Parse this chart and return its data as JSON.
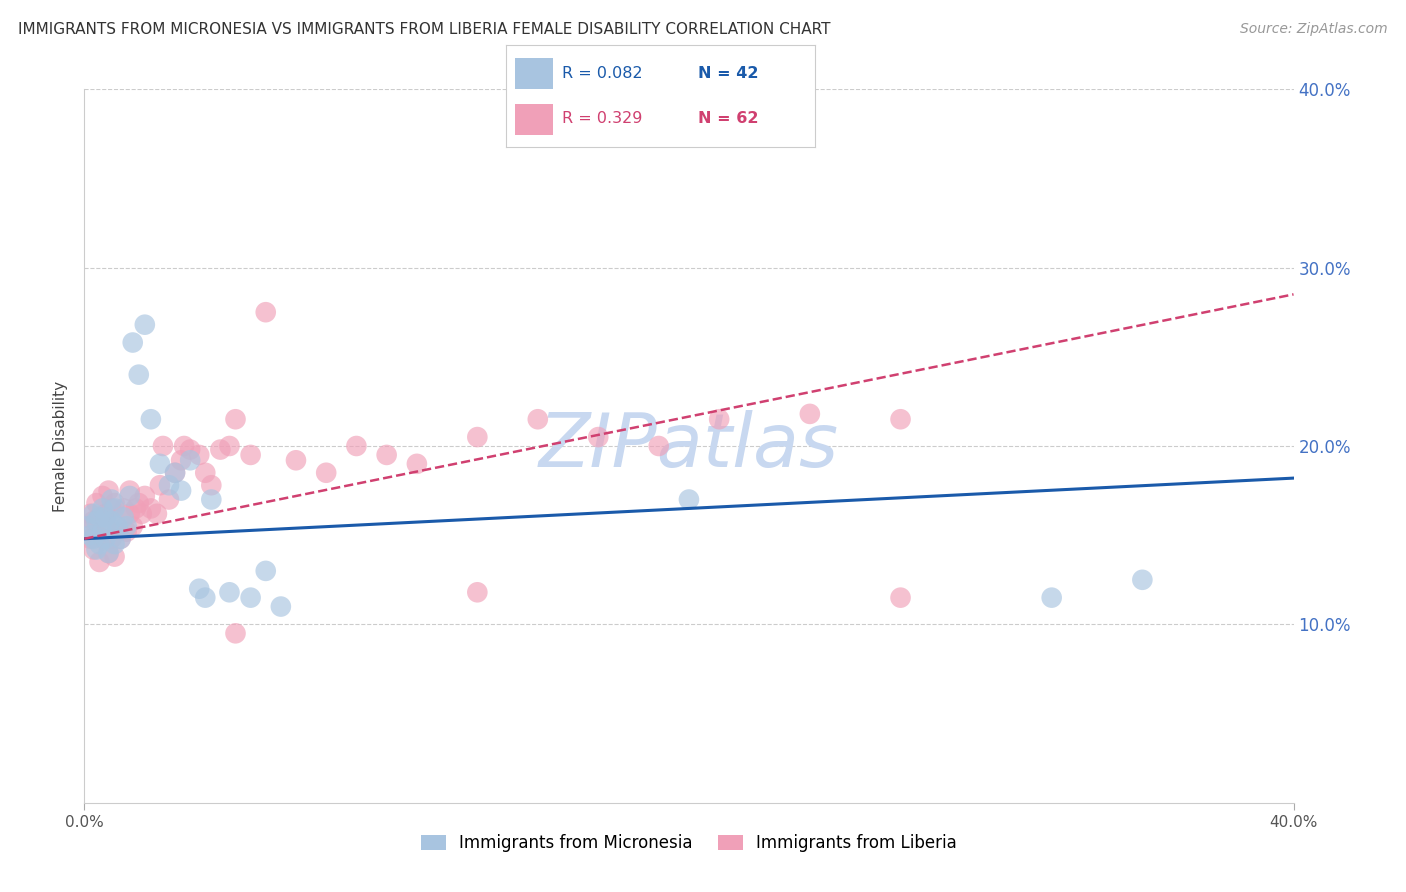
{
  "title": "IMMIGRANTS FROM MICRONESIA VS IMMIGRANTS FROM LIBERIA FEMALE DISABILITY CORRELATION CHART",
  "source": "Source: ZipAtlas.com",
  "ylabel": "Female Disability",
  "background_color": "#ffffff",
  "xlim": [
    0.0,
    0.4
  ],
  "ylim": [
    0.0,
    0.4
  ],
  "yticks": [
    0.1,
    0.2,
    0.3,
    0.4
  ],
  "xticks": [
    0.0,
    0.4
  ],
  "xtick_labels": [
    "0.0%",
    "40.0%"
  ],
  "ytick_labels": [
    "10.0%",
    "20.0%",
    "30.0%",
    "40.0%"
  ],
  "series1_label": "Immigrants from Micronesia",
  "series2_label": "Immigrants from Liberia",
  "series1_R": "0.082",
  "series1_N": "42",
  "series2_R": "0.329",
  "series2_N": "62",
  "series1_color": "#a8c4e0",
  "series2_color": "#f0a0b8",
  "trend1_color": "#1a5aaa",
  "trend2_color": "#d04070",
  "watermark": "ZIPatlas",
  "watermark_color": "#c8d8f0",
  "micronesia_x": [
    0.001,
    0.002,
    0.003,
    0.003,
    0.004,
    0.004,
    0.005,
    0.005,
    0.006,
    0.006,
    0.007,
    0.007,
    0.008,
    0.008,
    0.009,
    0.009,
    0.01,
    0.01,
    0.011,
    0.012,
    0.013,
    0.014,
    0.015,
    0.016,
    0.018,
    0.02,
    0.022,
    0.025,
    0.028,
    0.03,
    0.032,
    0.035,
    0.038,
    0.04,
    0.042,
    0.048,
    0.055,
    0.06,
    0.065,
    0.2,
    0.32,
    0.35
  ],
  "micronesia_y": [
    0.155,
    0.15,
    0.148,
    0.162,
    0.158,
    0.142,
    0.16,
    0.145,
    0.152,
    0.165,
    0.148,
    0.16,
    0.155,
    0.14,
    0.158,
    0.17,
    0.145,
    0.165,
    0.155,
    0.148,
    0.16,
    0.155,
    0.172,
    0.258,
    0.24,
    0.268,
    0.215,
    0.19,
    0.178,
    0.185,
    0.175,
    0.192,
    0.12,
    0.115,
    0.17,
    0.118,
    0.115,
    0.13,
    0.11,
    0.17,
    0.115,
    0.125
  ],
  "liberia_x": [
    0.001,
    0.002,
    0.002,
    0.003,
    0.003,
    0.004,
    0.004,
    0.005,
    0.005,
    0.006,
    0.006,
    0.007,
    0.007,
    0.008,
    0.008,
    0.009,
    0.009,
    0.01,
    0.01,
    0.011,
    0.012,
    0.013,
    0.014,
    0.015,
    0.015,
    0.016,
    0.017,
    0.018,
    0.019,
    0.02,
    0.022,
    0.024,
    0.025,
    0.026,
    0.028,
    0.03,
    0.032,
    0.033,
    0.035,
    0.038,
    0.04,
    0.042,
    0.045,
    0.048,
    0.05,
    0.055,
    0.06,
    0.07,
    0.08,
    0.09,
    0.1,
    0.11,
    0.13,
    0.15,
    0.17,
    0.19,
    0.21,
    0.24,
    0.27,
    0.05,
    0.13,
    0.27
  ],
  "liberia_y": [
    0.155,
    0.148,
    0.162,
    0.142,
    0.158,
    0.15,
    0.168,
    0.135,
    0.16,
    0.148,
    0.172,
    0.155,
    0.162,
    0.14,
    0.175,
    0.148,
    0.165,
    0.138,
    0.168,
    0.155,
    0.148,
    0.165,
    0.152,
    0.162,
    0.175,
    0.155,
    0.165,
    0.168,
    0.162,
    0.172,
    0.165,
    0.162,
    0.178,
    0.2,
    0.17,
    0.185,
    0.192,
    0.2,
    0.198,
    0.195,
    0.185,
    0.178,
    0.198,
    0.2,
    0.215,
    0.195,
    0.275,
    0.192,
    0.185,
    0.2,
    0.195,
    0.19,
    0.205,
    0.215,
    0.205,
    0.2,
    0.215,
    0.218,
    0.215,
    0.095,
    0.118,
    0.115
  ],
  "trend1_x": [
    0.0,
    0.4
  ],
  "trend1_y": [
    0.148,
    0.182
  ],
  "trend2_x": [
    0.0,
    0.4
  ],
  "trend2_y": [
    0.148,
    0.285
  ]
}
